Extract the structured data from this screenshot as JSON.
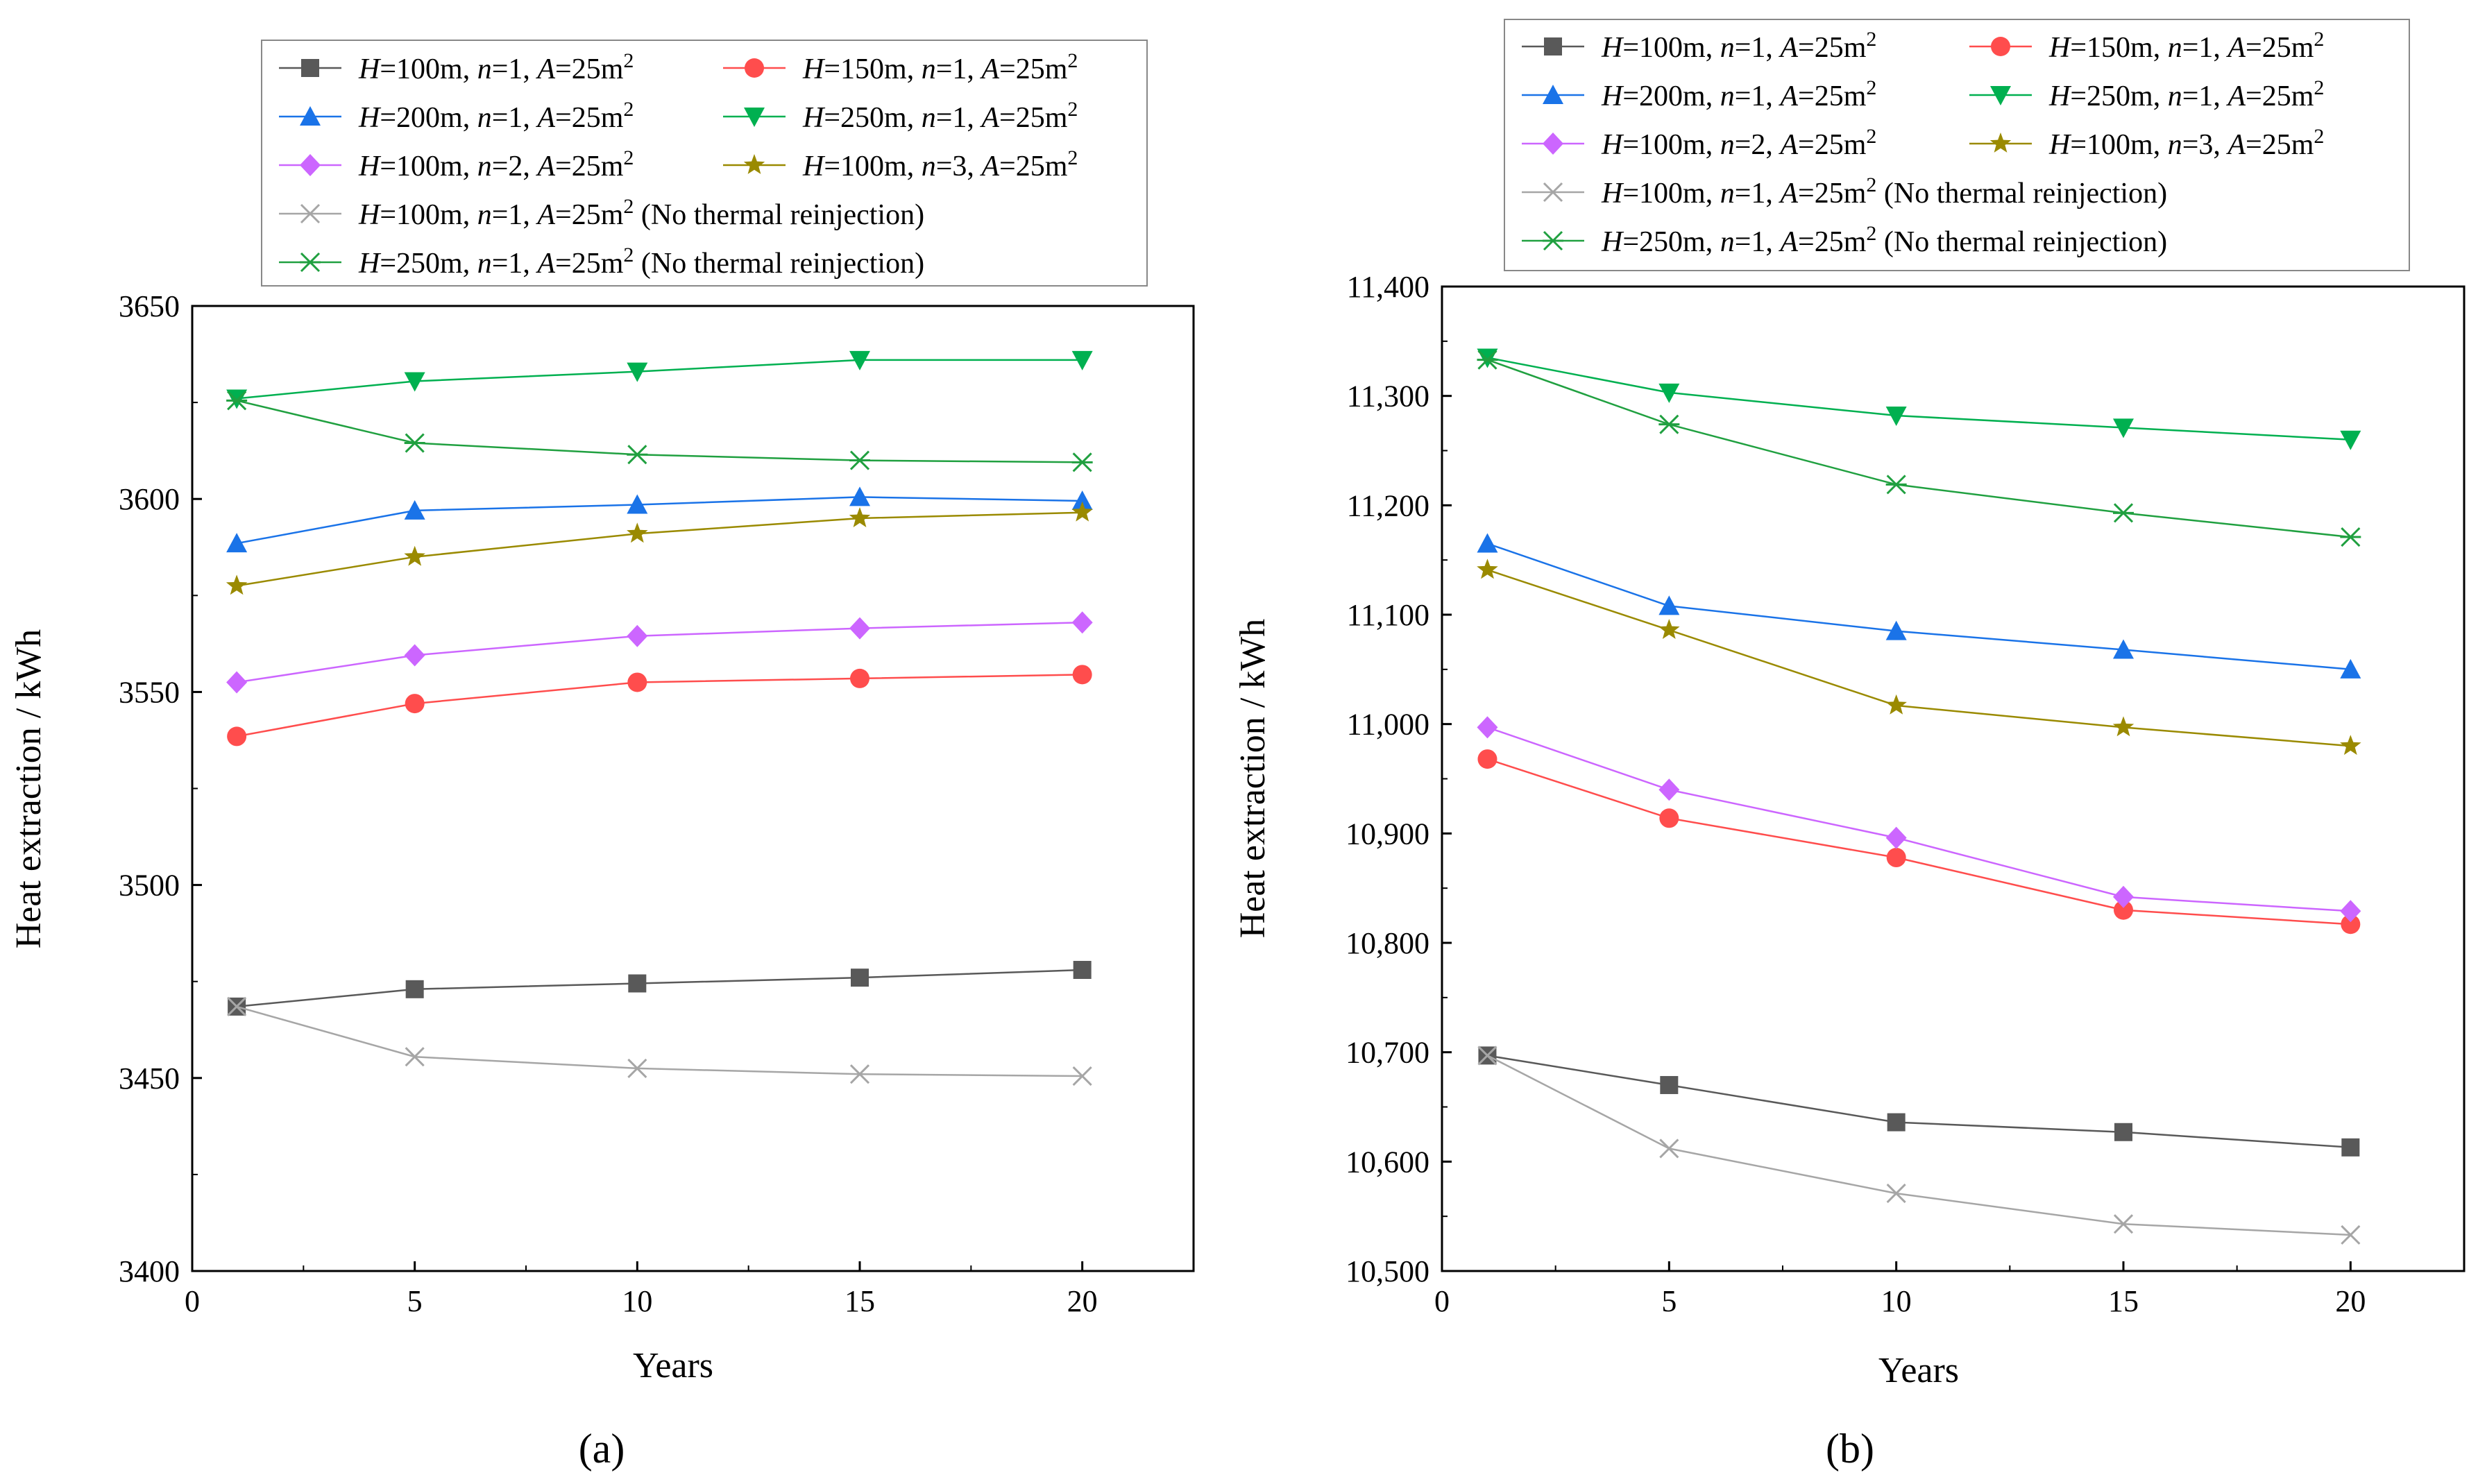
{
  "figure": {
    "panel_labels": [
      "(a)",
      "(b)"
    ]
  },
  "series_styles": [
    {
      "name": "H=100m, n=1, A=25m2",
      "color": "#595959",
      "marker": "square"
    },
    {
      "name": "H=150m, n=1, A=25m2",
      "color": "#ff4d4d",
      "marker": "circle"
    },
    {
      "name": "H=200m, n=1, A=25m2",
      "color": "#1a73e8",
      "marker": "triangle-up"
    },
    {
      "name": "H=250m, n=1, A=25m2",
      "color": "#00b050",
      "marker": "triangle-down"
    },
    {
      "name": "H=100m, n=2, A=25m2",
      "color": "#cc66ff",
      "marker": "diamond"
    },
    {
      "name": "H=100m, n=3, A=25m2",
      "color": "#9a8a00",
      "marker": "star"
    },
    {
      "name": "H=100m, n=1, A=25m2 (No thermal reinjection)",
      "color": "#a6a6a6",
      "marker": "x"
    },
    {
      "name": "H=250m, n=1, A=25m2 (No thermal reinjection)",
      "color": "#20a040",
      "marker": "asterisk"
    }
  ],
  "legend_entries": [
    {
      "pre": "",
      "H": "H",
      "eq1": "=100m, ",
      "n": "n",
      "eq2": "=1, ",
      "A": "A",
      "eq3": "=25m",
      "sup": "2",
      "note": ""
    },
    {
      "pre": "",
      "H": "H",
      "eq1": "=150m, ",
      "n": "n",
      "eq2": "=1, ",
      "A": "A",
      "eq3": "=25m",
      "sup": "2",
      "note": ""
    },
    {
      "pre": "",
      "H": "H",
      "eq1": "=200m, ",
      "n": "n",
      "eq2": "=1, ",
      "A": "A",
      "eq3": "=25m",
      "sup": "2",
      "note": ""
    },
    {
      "pre": "",
      "H": "H",
      "eq1": "=250m, ",
      "n": "n",
      "eq2": "=1, ",
      "A": "A",
      "eq3": "=25m",
      "sup": "2",
      "note": ""
    },
    {
      "pre": "",
      "H": "H",
      "eq1": "=100m, ",
      "n": "n",
      "eq2": "=2, ",
      "A": "A",
      "eq3": "=25m",
      "sup": "2",
      "note": ""
    },
    {
      "pre": "",
      "H": "H",
      "eq1": "=100m, ",
      "n": "n",
      "eq2": "=3, ",
      "A": "A",
      "eq3": "=25m",
      "sup": "2",
      "note": ""
    },
    {
      "pre": "",
      "H": "H",
      "eq1": "=100m, ",
      "n": "n",
      "eq2": "=1, ",
      "A": "A",
      "eq3": "=25m",
      "sup": "2",
      "note": "(No thermal reinjection)"
    },
    {
      "pre": "",
      "H": "H",
      "eq1": "=250m, ",
      "n": "n",
      "eq2": "=1, ",
      "A": "A",
      "eq3": "=25m",
      "sup": "2",
      "note": "(No thermal reinjection)"
    }
  ],
  "chart_data": [
    {
      "type": "line",
      "panel": "(a)",
      "xlabel": "Years",
      "ylabel": "Heat extraction / kWh",
      "xlim": [
        0,
        22.5
      ],
      "ylim": [
        3400,
        3650
      ],
      "xticks": [
        0,
        5,
        10,
        15,
        20
      ],
      "xtick_labels": [
        "0",
        "5",
        "10",
        "15",
        "20"
      ],
      "yticks": [
        3400,
        3450,
        3500,
        3550,
        3600,
        3650
      ],
      "ytick_labels": [
        "3400",
        "3450",
        "3500",
        "3550",
        "3600",
        "3650"
      ],
      "x": [
        1,
        5,
        10,
        15,
        20
      ],
      "series": [
        {
          "name": "H=100m, n=1, A=25m2",
          "values": [
            3468.5,
            3473,
            3474.5,
            3476,
            3478
          ]
        },
        {
          "name": "H=150m, n=1, A=25m2",
          "values": [
            3538.5,
            3547,
            3552.5,
            3553.5,
            3554.5
          ]
        },
        {
          "name": "H=200m, n=1, A=25m2",
          "values": [
            3588.5,
            3597,
            3598.5,
            3600.5,
            3599.5
          ]
        },
        {
          "name": "H=250m, n=1, A=25m2",
          "values": [
            3626,
            3630.5,
            3633,
            3636,
            3636
          ]
        },
        {
          "name": "H=100m, n=2, A=25m2",
          "values": [
            3552.5,
            3559.5,
            3564.5,
            3566.5,
            3568
          ]
        },
        {
          "name": "H=100m, n=3, A=25m2",
          "values": [
            3577.5,
            3585,
            3591,
            3595,
            3596.5
          ]
        },
        {
          "name": "H=100m, n=1, A=25m2 (No thermal reinjection)",
          "values": [
            3468.5,
            3455.5,
            3452.5,
            3451,
            3450.5
          ]
        },
        {
          "name": "H=250m, n=1, A=25m2 (No thermal reinjection)",
          "values": [
            3625.5,
            3614.5,
            3611.5,
            3610,
            3609.5
          ]
        }
      ]
    },
    {
      "type": "line",
      "panel": "(b)",
      "xlabel": "Years",
      "ylabel": "Heat extraction / kWh",
      "xlim": [
        0,
        22.5
      ],
      "ylim": [
        10500,
        11400
      ],
      "xticks": [
        0,
        5,
        10,
        15,
        20
      ],
      "xtick_labels": [
        "0",
        "5",
        "10",
        "15",
        "20"
      ],
      "yticks": [
        10500,
        10600,
        10700,
        10800,
        10900,
        11000,
        11100,
        11200,
        11300,
        11400
      ],
      "ytick_labels": [
        "10,500",
        "10,600",
        "10,700",
        "10,800",
        "10,900",
        "11,000",
        "11,100",
        "11,200",
        "11,300",
        "11,400"
      ],
      "x": [
        1,
        5,
        10,
        15,
        20
      ],
      "series": [
        {
          "name": "H=100m, n=1, A=25m2",
          "values": [
            10697,
            10670,
            10636,
            10627,
            10613
          ]
        },
        {
          "name": "H=150m, n=1, A=25m2",
          "values": [
            10968,
            10914,
            10878,
            10830,
            10817
          ]
        },
        {
          "name": "H=200m, n=1, A=25m2",
          "values": [
            11165,
            11108,
            11085,
            11068,
            11050
          ]
        },
        {
          "name": "H=250m, n=1, A=25m2",
          "values": [
            11335,
            11303,
            11282,
            11271,
            11260
          ]
        },
        {
          "name": "H=100m, n=2, A=25m2",
          "values": [
            10997,
            10940,
            10896,
            10842,
            10829
          ]
        },
        {
          "name": "H=100m, n=3, A=25m2",
          "values": [
            11141,
            11086,
            11017,
            10997,
            10980
          ]
        },
        {
          "name": "H=100m, n=1, A=25m2 (No thermal reinjection)",
          "values": [
            10697,
            10612,
            10571,
            10543,
            10533
          ]
        },
        {
          "name": "H=250m, n=1, A=25m2 (No thermal reinjection)",
          "values": [
            11333,
            11274,
            11219,
            11193,
            11171
          ]
        }
      ]
    }
  ]
}
